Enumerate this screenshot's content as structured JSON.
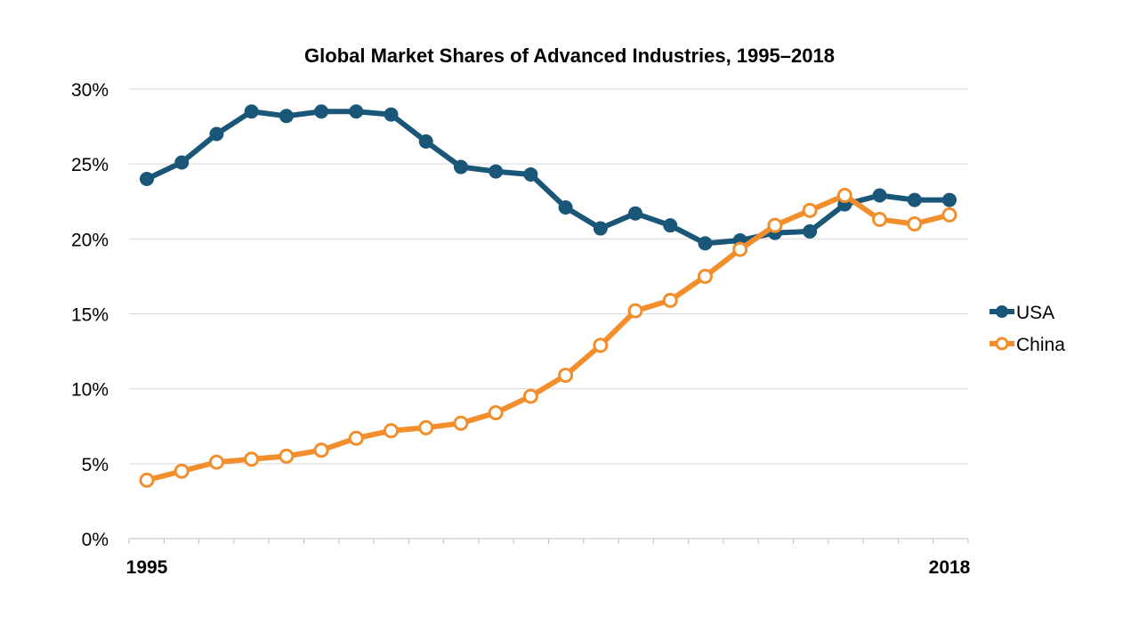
{
  "chart_data": {
    "type": "line",
    "title": "Global Market Shares of Advanced Industries, 1995–2018",
    "x": [
      1995,
      1996,
      1997,
      1998,
      1999,
      2000,
      2001,
      2002,
      2003,
      2004,
      2005,
      2006,
      2007,
      2008,
      2009,
      2010,
      2011,
      2012,
      2013,
      2014,
      2015,
      2016,
      2017,
      2018
    ],
    "x_tick_labels": [
      "1995",
      "2018"
    ],
    "y_tick_labels": [
      "0%",
      "5%",
      "10%",
      "15%",
      "20%",
      "25%",
      "30%"
    ],
    "ylim": [
      0,
      30
    ],
    "grid": true,
    "legend_placement": "right",
    "series": [
      {
        "name": "USA",
        "color": "#1a5678",
        "marker": "filled-circle",
        "values": [
          24.0,
          25.1,
          27.0,
          28.5,
          28.2,
          28.5,
          28.5,
          28.3,
          26.5,
          24.8,
          24.5,
          24.3,
          22.1,
          20.7,
          21.7,
          20.9,
          19.7,
          19.9,
          20.4,
          20.5,
          22.3,
          22.9,
          22.6,
          22.6
        ]
      },
      {
        "name": "China",
        "color": "#f28e2b",
        "marker": "hollow-circle",
        "values": [
          3.9,
          4.5,
          5.1,
          5.3,
          5.5,
          5.9,
          6.7,
          7.2,
          7.4,
          7.7,
          8.4,
          9.5,
          10.9,
          12.9,
          15.2,
          15.9,
          17.5,
          19.3,
          20.9,
          21.9,
          22.9,
          21.3,
          21.0,
          21.6
        ]
      }
    ]
  }
}
